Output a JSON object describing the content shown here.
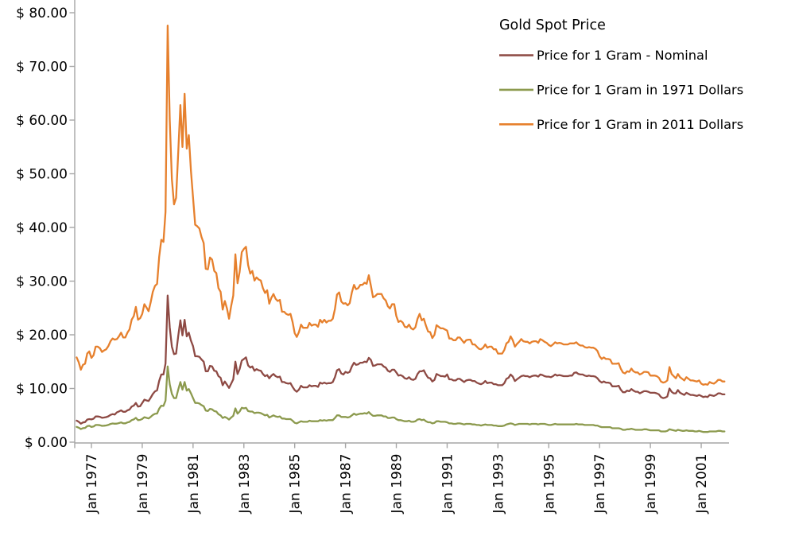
{
  "chart_data": {
    "type": "line",
    "title": "Gold Spot Price",
    "grid": false,
    "legend_position": "top-right",
    "x_axis": {
      "tick_years": [
        1977,
        1979,
        1981,
        1983,
        1985,
        1987,
        1989,
        1991,
        1993,
        1995,
        1997,
        1999,
        2001
      ],
      "tick_labels": [
        "Jan 1977",
        "Jan 1979",
        "Jan 1981",
        "Jan 1983",
        "Jan 1985",
        "Jan 1987",
        "Jan 1989",
        "Jan 1991",
        "Jan 1993",
        "Jan 1995",
        "Jan 1997",
        "Jan 1999",
        "Jan 2001"
      ],
      "range_years": [
        1976.4,
        2002.0
      ]
    },
    "y_axis": {
      "tick_values": [
        0,
        10,
        20,
        30,
        40,
        50,
        60,
        70,
        80
      ],
      "tick_labels": [
        "$ 0.00",
        "$ 10.00",
        "$ 20.00",
        "$ 30.00",
        "$ 40.00",
        "$ 50.00",
        "$ 60.00",
        "$ 70.00",
        "$ 80.00"
      ],
      "range": [
        0,
        80
      ],
      "unit": "USD per gram"
    },
    "x_start": 1976.4167,
    "x_step": 0.0833333,
    "series": [
      {
        "name": "Price for 1 Gram - Nominal",
        "color": "#8E4A44",
        "values": [
          4.02,
          3.79,
          3.45,
          3.67,
          3.73,
          4.2,
          4.3,
          4.24,
          4.37,
          4.79,
          4.79,
          4.73,
          4.53,
          4.6,
          4.66,
          4.82,
          5.08,
          5.21,
          5.14,
          5.56,
          5.72,
          5.92,
          5.66,
          5.66,
          5.92,
          6.08,
          6.62,
          6.82,
          7.3,
          6.62,
          6.69,
          7.3,
          7.91,
          7.78,
          7.68,
          8.3,
          8.97,
          9.45,
          9.68,
          11.41,
          12.6,
          12.6,
          14.63,
          27.3,
          21.4,
          17.8,
          16.4,
          16.5,
          19.8,
          22.7,
          19.9,
          22.8,
          19.7,
          20.4,
          18.9,
          17.9,
          16.0,
          16.0,
          15.9,
          15.4,
          15.0,
          13.2,
          13.2,
          14.2,
          14.1,
          13.3,
          13.2,
          12.3,
          12.0,
          10.6,
          11.3,
          10.7,
          10.1,
          10.9,
          11.7,
          15.0,
          12.7,
          13.6,
          15.2,
          15.5,
          15.8,
          14.3,
          13.9,
          14.1,
          13.3,
          13.6,
          13.4,
          13.3,
          12.7,
          12.3,
          12.5,
          11.9,
          12.4,
          12.7,
          12.3,
          12.1,
          12.2,
          11.2,
          11.2,
          11.0,
          10.9,
          11.0,
          10.3,
          9.7,
          9.4,
          9.8,
          10.5,
          10.2,
          10.2,
          10.2,
          10.6,
          10.4,
          10.5,
          10.5,
          10.3,
          11.1,
          10.9,
          11.1,
          10.9,
          11.0,
          11.0,
          11.2,
          12.1,
          13.4,
          13.6,
          12.8,
          12.6,
          13.1,
          12.9,
          13.1,
          14.1,
          14.8,
          14.4,
          14.5,
          14.8,
          14.8,
          15.0,
          14.9,
          15.7,
          15.3,
          14.2,
          14.3,
          14.5,
          14.5,
          14.5,
          14.1,
          13.9,
          13.3,
          13.1,
          13.5,
          13.5,
          13.0,
          12.4,
          12.5,
          12.3,
          11.9,
          11.8,
          12.1,
          11.7,
          11.6,
          11.8,
          12.7,
          13.2,
          13.2,
          13.4,
          12.6,
          12.0,
          11.9,
          11.3,
          11.6,
          12.7,
          12.5,
          12.3,
          12.3,
          12.2,
          12.6,
          11.7,
          11.7,
          11.5,
          11.5,
          11.8,
          11.8,
          11.5,
          11.2,
          11.5,
          11.6,
          11.6,
          11.4,
          11.4,
          11.1,
          10.9,
          10.8,
          11.0,
          11.4,
          11.0,
          11.1,
          11.1,
          10.8,
          10.8,
          10.6,
          10.6,
          10.6,
          11.0,
          11.8,
          12.0,
          12.6,
          12.2,
          11.4,
          11.7,
          12.0,
          12.3,
          12.4,
          12.3,
          12.3,
          12.1,
          12.3,
          12.4,
          12.4,
          12.2,
          12.6,
          12.5,
          12.3,
          12.2,
          12.2,
          12.1,
          12.3,
          12.6,
          12.4,
          12.5,
          12.4,
          12.3,
          12.3,
          12.3,
          12.4,
          12.4,
          12.9,
          13.0,
          12.7,
          12.6,
          12.6,
          12.4,
          12.3,
          12.4,
          12.3,
          12.3,
          12.2,
          11.9,
          11.4,
          11.1,
          11.3,
          11.1,
          11.1,
          11.0,
          10.4,
          10.4,
          10.4,
          10.5,
          9.8,
          9.3,
          9.3,
          9.6,
          9.5,
          9.9,
          9.6,
          9.4,
          9.4,
          9.1,
          9.3,
          9.5,
          9.5,
          9.4,
          9.2,
          9.2,
          9.2,
          9.1,
          8.9,
          8.4,
          8.2,
          8.3,
          8.5,
          10.0,
          9.4,
          9.1,
          9.1,
          9.7,
          9.2,
          9.0,
          8.8,
          9.2,
          9.0,
          8.8,
          8.8,
          8.7,
          8.6,
          8.8,
          8.6,
          8.4,
          8.5,
          8.4,
          8.8,
          8.7,
          8.6,
          8.8,
          9.1,
          9.1,
          8.9,
          8.9
        ]
      },
      {
        "name": "Price for 1 Gram in 1971 Dollars",
        "color": "#8C9A4E",
        "values": [
          2.85,
          2.69,
          2.45,
          2.61,
          2.65,
          2.98,
          3.05,
          2.83,
          2.92,
          3.2,
          3.2,
          3.16,
          3.03,
          3.07,
          3.11,
          3.22,
          3.39,
          3.48,
          3.43,
          3.45,
          3.55,
          3.68,
          3.51,
          3.51,
          3.68,
          3.78,
          4.11,
          4.24,
          4.53,
          4.11,
          4.15,
          4.33,
          4.65,
          4.53,
          4.42,
          4.73,
          5.06,
          5.27,
          5.34,
          6.23,
          6.8,
          6.74,
          7.74,
          14.1,
          10.8,
          9.0,
          8.2,
          8.2,
          9.8,
          11.2,
          9.8,
          11.2,
          9.6,
          9.9,
          9.1,
          8.2,
          7.3,
          7.3,
          7.2,
          6.9,
          6.7,
          5.9,
          5.8,
          6.2,
          6.1,
          5.8,
          5.7,
          5.2,
          5.0,
          4.5,
          4.7,
          4.5,
          4.2,
          4.6,
          4.9,
          6.3,
          5.3,
          5.7,
          6.4,
          6.3,
          6.4,
          5.8,
          5.7,
          5.7,
          5.4,
          5.5,
          5.5,
          5.4,
          5.2,
          5.0,
          5.1,
          4.6,
          4.8,
          5.0,
          4.8,
          4.7,
          4.8,
          4.4,
          4.4,
          4.3,
          4.3,
          4.3,
          4.0,
          3.6,
          3.5,
          3.7,
          3.9,
          3.8,
          3.8,
          3.8,
          4.0,
          3.9,
          3.9,
          3.9,
          3.9,
          4.1,
          4.0,
          4.1,
          4.0,
          4.1,
          4.1,
          4.1,
          4.5,
          5.0,
          5.0,
          4.7,
          4.7,
          4.7,
          4.6,
          4.7,
          5.0,
          5.3,
          5.1,
          5.2,
          5.3,
          5.3,
          5.4,
          5.3,
          5.6,
          5.2,
          4.9,
          4.9,
          5.0,
          5.0,
          5.0,
          4.8,
          4.8,
          4.5,
          4.5,
          4.6,
          4.6,
          4.3,
          4.1,
          4.1,
          4.0,
          3.9,
          3.9,
          4.0,
          3.8,
          3.8,
          3.9,
          4.2,
          4.3,
          4.1,
          4.2,
          3.9,
          3.7,
          3.7,
          3.5,
          3.6,
          3.9,
          3.9,
          3.8,
          3.8,
          3.8,
          3.7,
          3.5,
          3.5,
          3.4,
          3.4,
          3.5,
          3.5,
          3.4,
          3.3,
          3.4,
          3.4,
          3.4,
          3.3,
          3.3,
          3.2,
          3.2,
          3.1,
          3.2,
          3.3,
          3.2,
          3.2,
          3.2,
          3.1,
          3.1,
          3.0,
          3.0,
          3.0,
          3.1,
          3.3,
          3.4,
          3.5,
          3.4,
          3.2,
          3.3,
          3.4,
          3.4,
          3.4,
          3.4,
          3.4,
          3.3,
          3.4,
          3.4,
          3.4,
          3.3,
          3.4,
          3.4,
          3.4,
          3.3,
          3.2,
          3.2,
          3.3,
          3.4,
          3.3,
          3.3,
          3.3,
          3.3,
          3.3,
          3.3,
          3.3,
          3.3,
          3.3,
          3.4,
          3.3,
          3.3,
          3.3,
          3.2,
          3.2,
          3.2,
          3.2,
          3.2,
          3.1,
          3.1,
          2.9,
          2.8,
          2.8,
          2.8,
          2.8,
          2.8,
          2.6,
          2.6,
          2.6,
          2.6,
          2.5,
          2.3,
          2.3,
          2.4,
          2.4,
          2.5,
          2.4,
          2.3,
          2.3,
          2.3,
          2.3,
          2.4,
          2.4,
          2.3,
          2.2,
          2.2,
          2.2,
          2.2,
          2.2,
          2.0,
          2.0,
          2.0,
          2.1,
          2.4,
          2.3,
          2.2,
          2.1,
          2.3,
          2.2,
          2.1,
          2.1,
          2.2,
          2.1,
          2.1,
          2.1,
          2.0,
          2.0,
          2.1,
          2.0,
          1.9,
          1.9,
          1.9,
          2.0,
          2.0,
          2.0,
          2.0,
          2.1,
          2.1,
          2.0,
          2.0
        ]
      },
      {
        "name": "Price for 1 Gram in 2011 Dollars",
        "color": "#E6802D",
        "values": [
          15.8,
          14.9,
          13.5,
          14.4,
          14.6,
          16.5,
          16.9,
          15.7,
          16.2,
          17.8,
          17.8,
          17.5,
          16.8,
          17.1,
          17.3,
          17.9,
          18.8,
          19.3,
          19.1,
          19.2,
          19.7,
          20.4,
          19.5,
          19.5,
          20.4,
          21.0,
          22.8,
          23.5,
          25.2,
          22.8,
          23.1,
          23.9,
          25.7,
          25.1,
          24.4,
          26.1,
          28.0,
          29.1,
          29.5,
          34.5,
          37.7,
          37.3,
          42.9,
          77.6,
          60.1,
          49.0,
          44.3,
          45.5,
          54.0,
          62.8,
          55.0,
          64.9,
          54.7,
          57.2,
          50.5,
          45.6,
          40.5,
          40.2,
          39.8,
          38.2,
          37.1,
          32.3,
          32.2,
          34.4,
          34.0,
          31.9,
          31.5,
          28.7,
          28.0,
          24.7,
          26.3,
          24.9,
          23.0,
          25.4,
          27.3,
          35.0,
          29.6,
          31.7,
          35.4,
          36.0,
          36.4,
          33.0,
          31.4,
          31.9,
          30.1,
          30.7,
          30.3,
          30.1,
          28.7,
          27.8,
          28.3,
          25.8,
          26.9,
          27.6,
          26.7,
          26.3,
          26.5,
          24.3,
          24.3,
          23.9,
          23.7,
          23.9,
          22.4,
          20.3,
          19.6,
          20.5,
          21.9,
          21.3,
          21.3,
          21.3,
          22.2,
          21.7,
          21.9,
          21.9,
          21.5,
          22.8,
          22.3,
          22.8,
          22.3,
          22.6,
          22.6,
          23.0,
          24.8,
          27.5,
          27.9,
          26.2,
          25.8,
          25.9,
          25.5,
          25.9,
          27.9,
          29.3,
          28.5,
          28.7,
          29.3,
          29.3,
          29.7,
          29.5,
          31.1,
          29.1,
          27.0,
          27.2,
          27.6,
          27.6,
          27.6,
          26.8,
          26.4,
          25.3,
          24.9,
          25.7,
          25.7,
          23.5,
          22.4,
          22.6,
          22.3,
          21.5,
          21.4,
          21.9,
          21.2,
          21.0,
          21.4,
          23.0,
          23.9,
          22.7,
          23.0,
          21.7,
          20.6,
          20.5,
          19.4,
          20.0,
          21.8,
          21.5,
          21.2,
          21.2,
          21.0,
          20.8,
          19.3,
          19.3,
          19.0,
          19.0,
          19.5,
          19.5,
          19.0,
          18.5,
          19.0,
          19.1,
          19.1,
          18.2,
          18.2,
          17.8,
          17.4,
          17.3,
          17.6,
          18.2,
          17.6,
          17.8,
          17.8,
          17.3,
          17.3,
          16.5,
          16.5,
          16.5,
          17.2,
          18.4,
          18.7,
          19.7,
          19.0,
          17.8,
          18.3,
          18.7,
          19.2,
          18.8,
          18.7,
          18.7,
          18.4,
          18.7,
          18.8,
          18.8,
          18.5,
          19.2,
          19.0,
          18.7,
          18.5,
          18.1,
          17.9,
          18.2,
          18.6,
          18.4,
          18.5,
          18.4,
          18.2,
          18.2,
          18.2,
          18.4,
          18.4,
          18.4,
          18.6,
          18.2,
          18.0,
          18.0,
          17.7,
          17.6,
          17.7,
          17.6,
          17.6,
          17.4,
          17.0,
          16.0,
          15.5,
          15.8,
          15.5,
          15.5,
          15.4,
          14.6,
          14.6,
          14.6,
          14.7,
          13.7,
          13.0,
          12.8,
          13.2,
          13.1,
          13.7,
          13.2,
          13.0,
          13.0,
          12.6,
          12.8,
          13.1,
          13.1,
          13.0,
          12.4,
          12.4,
          12.4,
          12.3,
          12.0,
          11.3,
          11.1,
          11.2,
          11.5,
          14.0,
          12.7,
          12.3,
          11.9,
          12.7,
          12.1,
          11.8,
          11.5,
          12.1,
          11.8,
          11.5,
          11.5,
          11.4,
          11.3,
          11.5,
          10.9,
          10.7,
          10.8,
          10.7,
          11.2,
          11.0,
          10.9,
          11.2,
          11.6,
          11.6,
          11.3,
          11.3
        ]
      }
    ]
  },
  "colors": {
    "axis": "#A6A6A6",
    "text": "#000000",
    "background": "#FFFFFF"
  }
}
